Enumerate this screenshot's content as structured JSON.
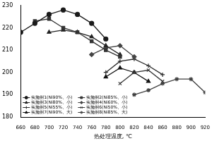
{
  "chart_data": {
    "type": "line",
    "xlabel": "热处理温度, ℃",
    "xlim": [
      660,
      920
    ],
    "xticks": [
      660,
      680,
      700,
      720,
      740,
      760,
      780,
      800,
      820,
      840,
      860,
      880,
      900,
      920
    ],
    "ylim": [
      180,
      230
    ],
    "yticks": [
      180,
      190,
      200,
      210,
      220,
      230
    ],
    "grid": false,
    "legend": "lower left",
    "series": [
      {
        "name": "实施例1(Ni90%、小)",
        "color": "#1a1a1a",
        "marker": "circle",
        "x": [
          660,
          680,
          700,
          720,
          740,
          760,
          780
        ],
        "values": [
          218,
          222,
          226,
          228,
          226,
          222,
          215
        ]
      },
      {
        "name": "实施例2(Ni85%、小)",
        "color": "#333333",
        "marker": "square",
        "x": [
          680,
          700,
          720,
          740,
          760,
          780,
          800
        ],
        "values": [
          223,
          224,
          220,
          218,
          214,
          210,
          207
        ]
      },
      {
        "name": "实施例3(Ni80%、小)",
        "color": "#222222",
        "marker": "triangle",
        "x": [
          700,
          720,
          740,
          760,
          780,
          800
        ],
        "values": [
          218,
          219,
          218,
          216,
          212,
          208
        ]
      },
      {
        "name": "实施例4(Ni60%、小)",
        "color": "#444444",
        "marker": "diamond",
        "x": [
          760,
          780,
          800,
          820
        ],
        "values": [
          208,
          211,
          212,
          207
        ]
      },
      {
        "name": "实施例5(Ni55%、小)",
        "color": "#2a2a2a",
        "marker": "cross",
        "x": [
          780,
          800,
          820,
          840,
          860
        ],
        "values": [
          200,
          205,
          206,
          203,
          199
        ]
      },
      {
        "name": "实施例6(Ni50%、小)",
        "color": "#3a3a3a",
        "marker": "x",
        "x": [
          800,
          820,
          840,
          860
        ],
        "values": [
          195,
          200,
          201,
          196
        ]
      },
      {
        "name": "实施例7(Ni90%、大)",
        "color": "#111111",
        "marker": "triangle",
        "x": [
          780,
          800,
          820,
          840
        ],
        "values": [
          198,
          202,
          200,
          196
        ]
      },
      {
        "name": "实施例8(Ni85%、大)",
        "color": "#404040",
        "marker": "star",
        "x": [
          820,
          840,
          860,
          880,
          900,
          920
        ],
        "values": [
          190,
          192,
          195,
          197,
          197,
          191
        ]
      }
    ]
  }
}
